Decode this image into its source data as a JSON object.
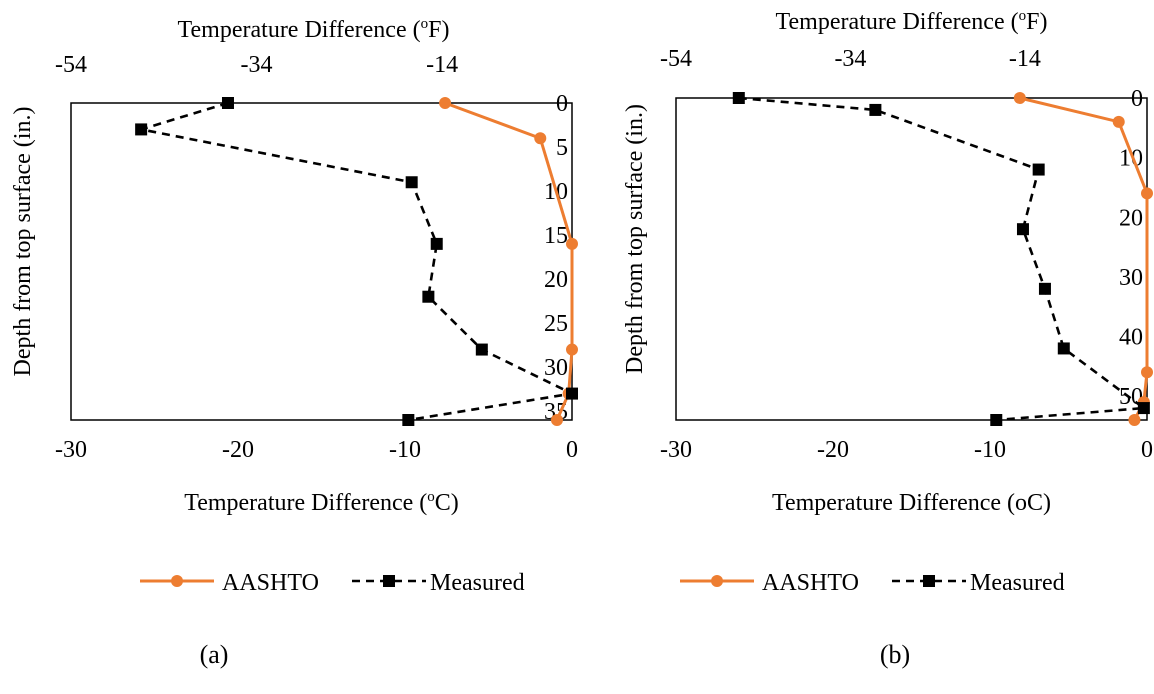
{
  "colors": {
    "aashto": "#ED7D31",
    "measured": "#000000",
    "axis": "#000000"
  },
  "chart_data": [
    {
      "type": "line",
      "panel": "(a)",
      "xlabel": "Temperature Difference (oC)",
      "xlabel_main": "Temperature Difference (",
      "xlabel_sup": "o",
      "xlabel_tail": "C)",
      "x2label_main": "Temperature Difference (",
      "x2label_sup": "o",
      "x2label_tail": "F)",
      "ylabel": "Depth from top surface (in.)",
      "xlim": [
        -30,
        0
      ],
      "ylim": [
        0,
        36
      ],
      "y_reversed": true,
      "x_ticks": [
        -30,
        -20,
        -10,
        0
      ],
      "x2_ticks": [
        -54,
        -34,
        -14
      ],
      "y_ticks": [
        0,
        5,
        10,
        15,
        20,
        25,
        30,
        35
      ],
      "series": [
        {
          "name": "AASHTO",
          "marker": "circle",
          "dash": "solid",
          "points": [
            [
              -7.6,
              0
            ],
            [
              -1.9,
              4
            ],
            [
              0,
              16
            ],
            [
              0,
              28
            ],
            [
              -0.2,
              33
            ],
            [
              -0.9,
              36
            ]
          ]
        },
        {
          "name": "Measured",
          "marker": "square",
          "dash": "dashed",
          "points": [
            [
              -20.6,
              0
            ],
            [
              -25.8,
              3
            ],
            [
              -9.6,
              9
            ],
            [
              -8.1,
              16
            ],
            [
              -8.6,
              22
            ],
            [
              -5.4,
              28
            ],
            [
              0,
              33
            ],
            [
              -9.8,
              36
            ]
          ]
        }
      ],
      "legend": [
        "AASHTO",
        "Measured"
      ]
    },
    {
      "type": "line",
      "panel": "(b)",
      "xlabel": "Temperature Difference (oC)",
      "xlabel_main": "Temperature Difference (oC)",
      "xlabel_sup": "",
      "xlabel_tail": "",
      "x2label_main": "Temperature Difference (",
      "x2label_sup": "o",
      "x2label_tail": "F)",
      "ylabel": "Depth from top surface (in.)",
      "xlim": [
        -30,
        0
      ],
      "ylim": [
        0,
        54
      ],
      "y_reversed": true,
      "x_ticks": [
        -30,
        -20,
        -10,
        0
      ],
      "x2_ticks": [
        -54,
        -34,
        -14
      ],
      "y_ticks": [
        0,
        10,
        20,
        30,
        40,
        50
      ],
      "series": [
        {
          "name": "AASHTO",
          "marker": "circle",
          "dash": "solid",
          "points": [
            [
              -8.1,
              0
            ],
            [
              -1.8,
              4
            ],
            [
              0,
              16
            ],
            [
              0,
              46
            ],
            [
              -0.2,
              51
            ],
            [
              -0.8,
              54
            ]
          ]
        },
        {
          "name": "Measured",
          "marker": "square",
          "dash": "dashed",
          "points": [
            [
              -26.0,
              0
            ],
            [
              -17.3,
              2
            ],
            [
              -6.9,
              12
            ],
            [
              -7.9,
              22
            ],
            [
              -6.5,
              32
            ],
            [
              -5.3,
              42
            ],
            [
              -0.2,
              52
            ],
            [
              -9.6,
              54
            ]
          ]
        }
      ],
      "legend": [
        "AASHTO",
        "Measured"
      ]
    }
  ]
}
